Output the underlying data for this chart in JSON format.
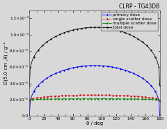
{
  "title": "CLRP - TG43DB",
  "xlabel": "θ / deg",
  "ylabel": "Ḋ(5.0 cm ,θ) / g⁻¹",
  "xlim": [
    0,
    180
  ],
  "ylim": [
    0.0,
    0.00013
  ],
  "yticks": [
    0.0,
    2e-05,
    4e-05,
    6e-05,
    8e-05,
    0.0001,
    0.00012
  ],
  "ytick_labels": [
    "0.0",
    "2.0×10⁻⁵",
    "4.0×10⁻⁵",
    "6.0×10⁻⁵",
    "8.0×10⁻⁵",
    "1.0×10⁻⁴",
    "1.2×10⁻⁴"
  ],
  "xticks": [
    0,
    20,
    40,
    60,
    80,
    100,
    120,
    140,
    160,
    180
  ],
  "bg_color": "#d8d8d8",
  "primary_color": "#0000ee",
  "single_color": "#cc0000",
  "multiple_color": "#007700",
  "total_color": "#111111",
  "legend_entries": [
    "primary dose",
    "single scatter dose",
    "multiple scatter dose",
    "total dose"
  ],
  "title_fontsize": 5.5,
  "axis_fontsize": 5.0,
  "tick_fontsize": 4.2,
  "legend_fontsize": 4.2,
  "marker_size": 2.0,
  "line_width": 0.65
}
